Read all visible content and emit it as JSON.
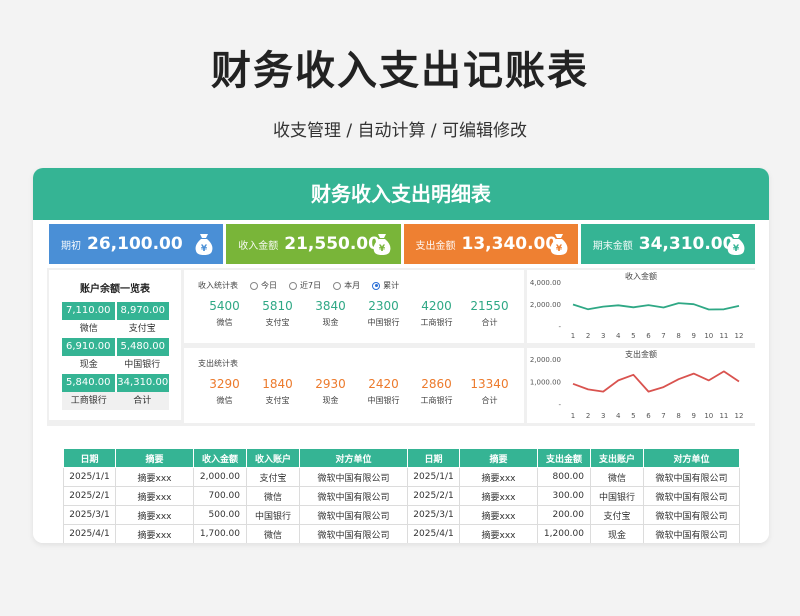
{
  "page": {
    "title": "财务收入支出记账表",
    "subtitle": "收支管理 / 自动计算 / 可编辑修改"
  },
  "card": {
    "title": "财务收入支出明细表"
  },
  "kpis": [
    {
      "label": "期初",
      "value": "26,100.00",
      "color": "#4a8fd6"
    },
    {
      "label": "收入金额",
      "value": "21,550.00",
      "color": "#79b539"
    },
    {
      "label": "支出金额",
      "value": "13,340.00",
      "color": "#ee8032"
    },
    {
      "label": "期末金额",
      "value": "34,310.00",
      "color": "#35b494"
    }
  ],
  "balance": {
    "title": "账户余额一览表",
    "rows": [
      {
        "v1": "7,110.00",
        "v2": "8,970.00",
        "l1": "微信",
        "l2": "支付宝"
      },
      {
        "v1": "6,910.00",
        "v2": "5,480.00",
        "l1": "现金",
        "l2": "中国银行"
      },
      {
        "v1": "5,840.00",
        "v2": "34,310.00",
        "l1": "工商银行",
        "l2": "合计"
      }
    ]
  },
  "income_stats": {
    "title": "收入统计表",
    "filters": [
      "今日",
      "近7日",
      "本月",
      "累计"
    ],
    "selected_filter": "累计",
    "items": [
      {
        "value": "5400",
        "name": "微信"
      },
      {
        "value": "5810",
        "name": "支付宝"
      },
      {
        "value": "3840",
        "name": "现金"
      },
      {
        "value": "2300",
        "name": "中国银行"
      },
      {
        "value": "4200",
        "name": "工商银行"
      },
      {
        "value": "21550",
        "name": "合计"
      }
    ]
  },
  "expense_stats": {
    "title": "支出统计表",
    "items": [
      {
        "value": "3290",
        "name": "微信"
      },
      {
        "value": "1840",
        "name": "支付宝"
      },
      {
        "value": "2930",
        "name": "现金"
      },
      {
        "value": "2420",
        "name": "中国银行"
      },
      {
        "value": "2860",
        "name": "工商银行"
      },
      {
        "value": "13340",
        "name": "合计"
      }
    ]
  },
  "chart_data": [
    {
      "type": "line",
      "title": "收入金额",
      "x": [
        "1",
        "2",
        "3",
        "4",
        "5",
        "6",
        "7",
        "8",
        "9",
        "10",
        "11",
        "12"
      ],
      "series": [
        {
          "values": [
            1950,
            1520,
            1760,
            1880,
            1700,
            1900,
            1680,
            2080,
            1980,
            1500,
            1520,
            1830
          ],
          "color": "#2fa885"
        }
      ],
      "yticks": [
        "4,000.00",
        "2,000.00",
        "-"
      ],
      "ylim": [
        0,
        4000
      ]
    },
    {
      "type": "line",
      "title": "支出金额",
      "x": [
        "1",
        "2",
        "3",
        "4",
        "5",
        "6",
        "7",
        "8",
        "9",
        "10",
        "11",
        "12"
      ],
      "series": [
        {
          "values": [
            900,
            650,
            550,
            1050,
            1300,
            550,
            750,
            1100,
            1350,
            1050,
            1450,
            1000
          ],
          "color": "#d9534f"
        }
      ],
      "yticks": [
        "2,000.00",
        "1,000.00",
        "-"
      ],
      "ylim": [
        0,
        2000
      ]
    }
  ],
  "ledger": {
    "headers": [
      "日期",
      "摘要",
      "收入金额",
      "收入账户",
      "对方单位",
      "日期",
      "摘要",
      "支出金额",
      "支出账户",
      "对方单位"
    ],
    "rows": [
      [
        "2025/1/1",
        "摘要xxx",
        "2,000.00",
        "支付宝",
        "微软中国有限公司",
        "2025/1/1",
        "摘要xxx",
        "800.00",
        "微信",
        "微软中国有限公司"
      ],
      [
        "2025/2/1",
        "摘要xxx",
        "700.00",
        "微信",
        "微软中国有限公司",
        "2025/2/1",
        "摘要xxx",
        "300.00",
        "中国银行",
        "微软中国有限公司"
      ],
      [
        "2025/3/1",
        "摘要xxx",
        "500.00",
        "中国银行",
        "微软中国有限公司",
        "2025/3/1",
        "摘要xxx",
        "200.00",
        "支付宝",
        "微软中国有限公司"
      ],
      [
        "2025/4/1",
        "摘要xxx",
        "1,700.00",
        "微信",
        "微软中国有限公司",
        "2025/4/1",
        "摘要xxx",
        "1,200.00",
        "现金",
        "微软中国有限公司"
      ]
    ]
  }
}
